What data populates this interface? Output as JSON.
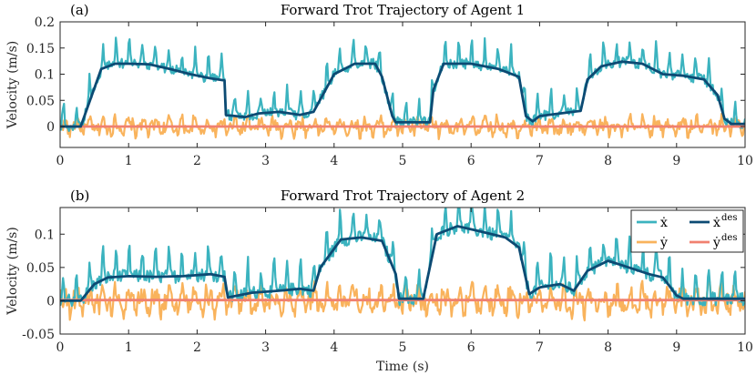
{
  "colors": {
    "x_measured": "#3BB3BF",
    "y_measured": "#F9B35C",
    "x_desired": "#0C4A73",
    "y_desired": "#F08070",
    "axis": "#262626",
    "background": "#FFFFFF"
  },
  "chart_data": [
    {
      "type": "line",
      "panel_label": "(a)",
      "title": "Forward Trot Trajectory of Agent 1",
      "xlabel": "",
      "ylabel": "Velocity (m/s)",
      "xlim": [
        0,
        10
      ],
      "ylim": [
        -0.04,
        0.2
      ],
      "x_ticks": [
        "0",
        "1",
        "2",
        "3",
        "4",
        "5",
        "6",
        "7",
        "8",
        "9",
        "10"
      ],
      "y_ticks": [
        {
          "value": 0,
          "label": "0"
        },
        {
          "value": 0.05,
          "label": "0.05"
        },
        {
          "value": 0.1,
          "label": "0.1"
        },
        {
          "value": 0.15,
          "label": "0.15"
        },
        {
          "value": 0.2,
          "label": "0.2"
        }
      ],
      "legend": null,
      "desired_x": {
        "t": [
          0,
          0.3,
          0.6,
          0.8,
          1.0,
          1.3,
          1.6,
          1.9,
          2.2,
          2.4,
          2.42,
          2.7,
          2.9,
          3.2,
          3.5,
          3.7,
          4.0,
          4.3,
          4.6,
          4.7,
          4.85,
          4.9,
          5.4,
          5.45,
          5.6,
          6.0,
          6.4,
          6.7,
          6.8,
          6.9,
          7.0,
          7.3,
          7.6,
          7.7,
          7.9,
          8.2,
          8.5,
          8.8,
          9.1,
          9.4,
          9.6,
          9.7,
          9.8,
          10.0
        ],
        "v": [
          0,
          0,
          0.11,
          0.12,
          0.12,
          0.119,
          0.11,
          0.1,
          0.092,
          0.088,
          0.022,
          0.018,
          0.025,
          0.028,
          0.022,
          0.028,
          0.1,
          0.12,
          0.12,
          0.095,
          0.02,
          0.008,
          0.008,
          0.07,
          0.12,
          0.12,
          0.11,
          0.095,
          0.02,
          0.01,
          0.02,
          0.025,
          0.03,
          0.09,
          0.115,
          0.124,
          0.12,
          0.1,
          0.097,
          0.09,
          0.06,
          0.015,
          0.005,
          0.005
        ]
      },
      "desired_y": {
        "t": [
          0,
          10
        ],
        "v": [
          0,
          0
        ]
      }
    },
    {
      "type": "line",
      "panel_label": "(b)",
      "title": "Forward Trot Trajectory of Agent 2",
      "xlabel": "Time (s)",
      "ylabel": "Velocity (m/s)",
      "xlim": [
        0,
        10
      ],
      "ylim": [
        -0.05,
        0.14
      ],
      "x_ticks": [
        "0",
        "1",
        "2",
        "3",
        "4",
        "5",
        "6",
        "7",
        "8",
        "9",
        "10"
      ],
      "y_ticks": [
        {
          "value": -0.05,
          "label": "-0.05"
        },
        {
          "value": 0,
          "label": "0"
        },
        {
          "value": 0.05,
          "label": "0.05"
        },
        {
          "value": 0.1,
          "label": "0.1"
        }
      ],
      "legend": {
        "position": "top-right",
        "entries": [
          {
            "key": "x_measured",
            "base": "ẋ",
            "sup": ""
          },
          {
            "key": "x_desired",
            "base": "ẋ",
            "sup": "des"
          },
          {
            "key": "y_measured",
            "base": "ẏ",
            "sup": ""
          },
          {
            "key": "y_desired",
            "base": "ẏ",
            "sup": "des"
          }
        ]
      },
      "desired_x": {
        "t": [
          0,
          0.3,
          0.5,
          0.7,
          1.0,
          1.4,
          1.8,
          2.2,
          2.4,
          2.45,
          2.8,
          3.2,
          3.5,
          3.7,
          3.8,
          4.1,
          4.4,
          4.7,
          4.9,
          4.95,
          5.3,
          5.5,
          5.8,
          6.1,
          6.5,
          6.7,
          6.85,
          7.0,
          7.3,
          7.5,
          7.7,
          8.0,
          8.3,
          8.6,
          8.8,
          9.0,
          9.1,
          10.0
        ],
        "v": [
          0,
          0,
          0.025,
          0.035,
          0.037,
          0.036,
          0.037,
          0.04,
          0.036,
          0.005,
          0.012,
          0.015,
          0.018,
          0.015,
          0.05,
          0.092,
          0.095,
          0.09,
          0.04,
          0.003,
          0.003,
          0.1,
          0.112,
          0.105,
          0.095,
          0.08,
          0.01,
          0.02,
          0.025,
          0.015,
          0.045,
          0.06,
          0.05,
          0.04,
          0.035,
          0.008,
          0.003,
          0.003
        ]
      },
      "desired_y": {
        "t": [
          0,
          10
        ],
        "v": [
          0.001,
          0.001
        ]
      }
    }
  ]
}
